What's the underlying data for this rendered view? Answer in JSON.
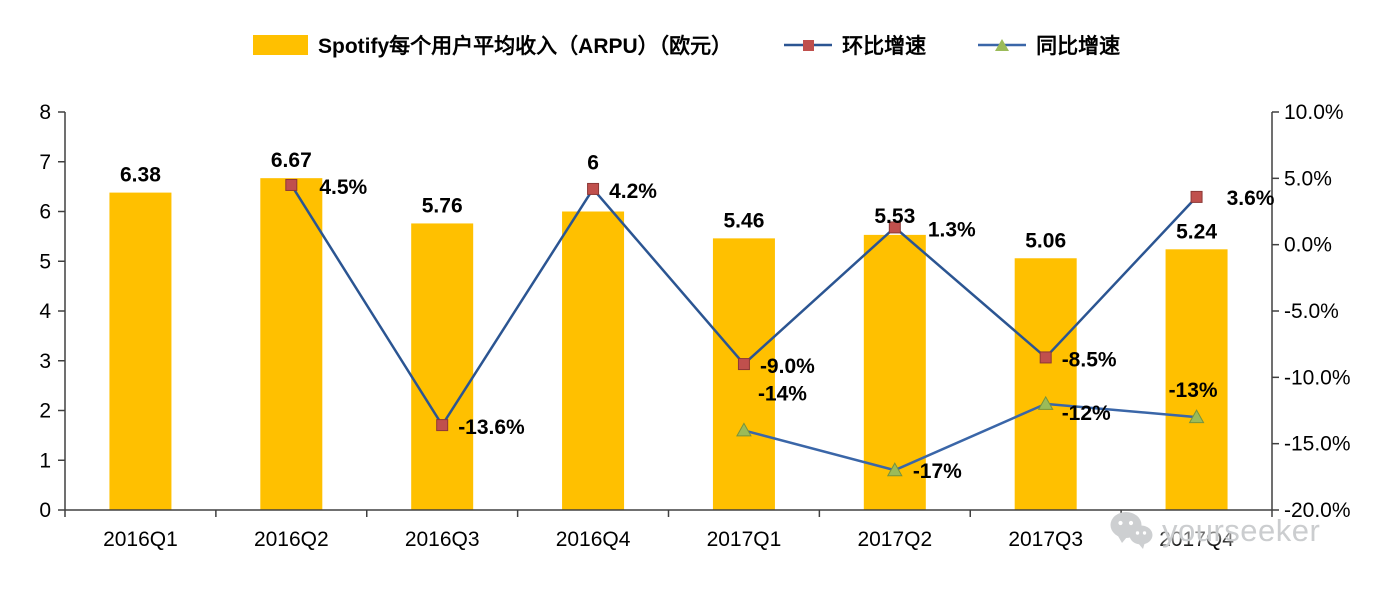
{
  "legend": {
    "items": [
      {
        "label": "Spotify每个用户平均收入（ARPU）（欧元）",
        "swatch": "bar"
      },
      {
        "label": "环比增速",
        "swatch": "line-square"
      },
      {
        "label": "同比增速",
        "swatch": "line-triangle"
      }
    ]
  },
  "watermark": {
    "text": "yourseeker"
  },
  "chart_data": {
    "type": "combo-bar-line",
    "categories": [
      "2016Q1",
      "2016Q2",
      "2016Q3",
      "2016Q4",
      "2017Q1",
      "2017Q2",
      "2017Q3",
      "2017Q4"
    ],
    "left_axis": {
      "min": 0,
      "max": 8,
      "tick_step": 1,
      "labels_top_to_bottom": [
        "8",
        "7",
        "6",
        "5",
        "4",
        "3",
        "2",
        "1",
        "0"
      ]
    },
    "right_axis": {
      "min": -20,
      "max": 10,
      "tick_step": 5,
      "labels_top_to_bottom": [
        "10.0%",
        "5.0%",
        "0.0%",
        "-5.0%",
        "-10.0%",
        "-15.0%",
        "-20.0%"
      ]
    },
    "grid": "off",
    "legend_position": "top",
    "series": [
      {
        "name": "Spotify每个用户平均收入（ARPU）（欧元）",
        "type": "bar",
        "axis": "left",
        "color": "#FFC000",
        "values": [
          6.38,
          6.67,
          5.76,
          6,
          5.46,
          5.53,
          5.06,
          5.24
        ],
        "labels": [
          "6.38",
          "6.67",
          "5.76",
          "6",
          "5.46",
          "5.53",
          "5.06",
          "5.24"
        ],
        "label_dy": [
          -11,
          -11,
          -11,
          -42,
          -11,
          -12,
          -11,
          -11
        ]
      },
      {
        "name": "环比增速",
        "type": "line",
        "axis": "right",
        "color": "#2B5592",
        "marker": {
          "shape": "square",
          "color": "#C0504D"
        },
        "values": [
          null,
          4.5,
          -13.6,
          4.2,
          -9.0,
          1.3,
          -8.5,
          3.6
        ],
        "labels": [
          null,
          "4.5%",
          "-13.6%",
          "4.2%",
          "-9.0%",
          "1.3%",
          "-8.5%",
          "3.6%"
        ],
        "label_offsets": [
          null,
          [
            28,
            9
          ],
          [
            16,
            9
          ],
          [
            16,
            9
          ],
          [
            16,
            9
          ],
          [
            33,
            9
          ],
          [
            16,
            9
          ],
          [
            30,
            8
          ]
        ]
      },
      {
        "name": "同比增速",
        "type": "line",
        "axis": "right",
        "color": "#3A66A8",
        "marker": {
          "shape": "triangle",
          "color": "#9BBB59"
        },
        "values": [
          null,
          null,
          null,
          null,
          -14,
          -17,
          -12,
          -13
        ],
        "labels": [
          null,
          null,
          null,
          null,
          "-14%",
          "-17%",
          "-12%",
          "-13%"
        ],
        "label_offsets": [
          null,
          null,
          null,
          null,
          [
            14,
            -30
          ],
          [
            18,
            8
          ],
          [
            16,
            16
          ],
          [
            -28,
            -20
          ]
        ]
      }
    ]
  }
}
